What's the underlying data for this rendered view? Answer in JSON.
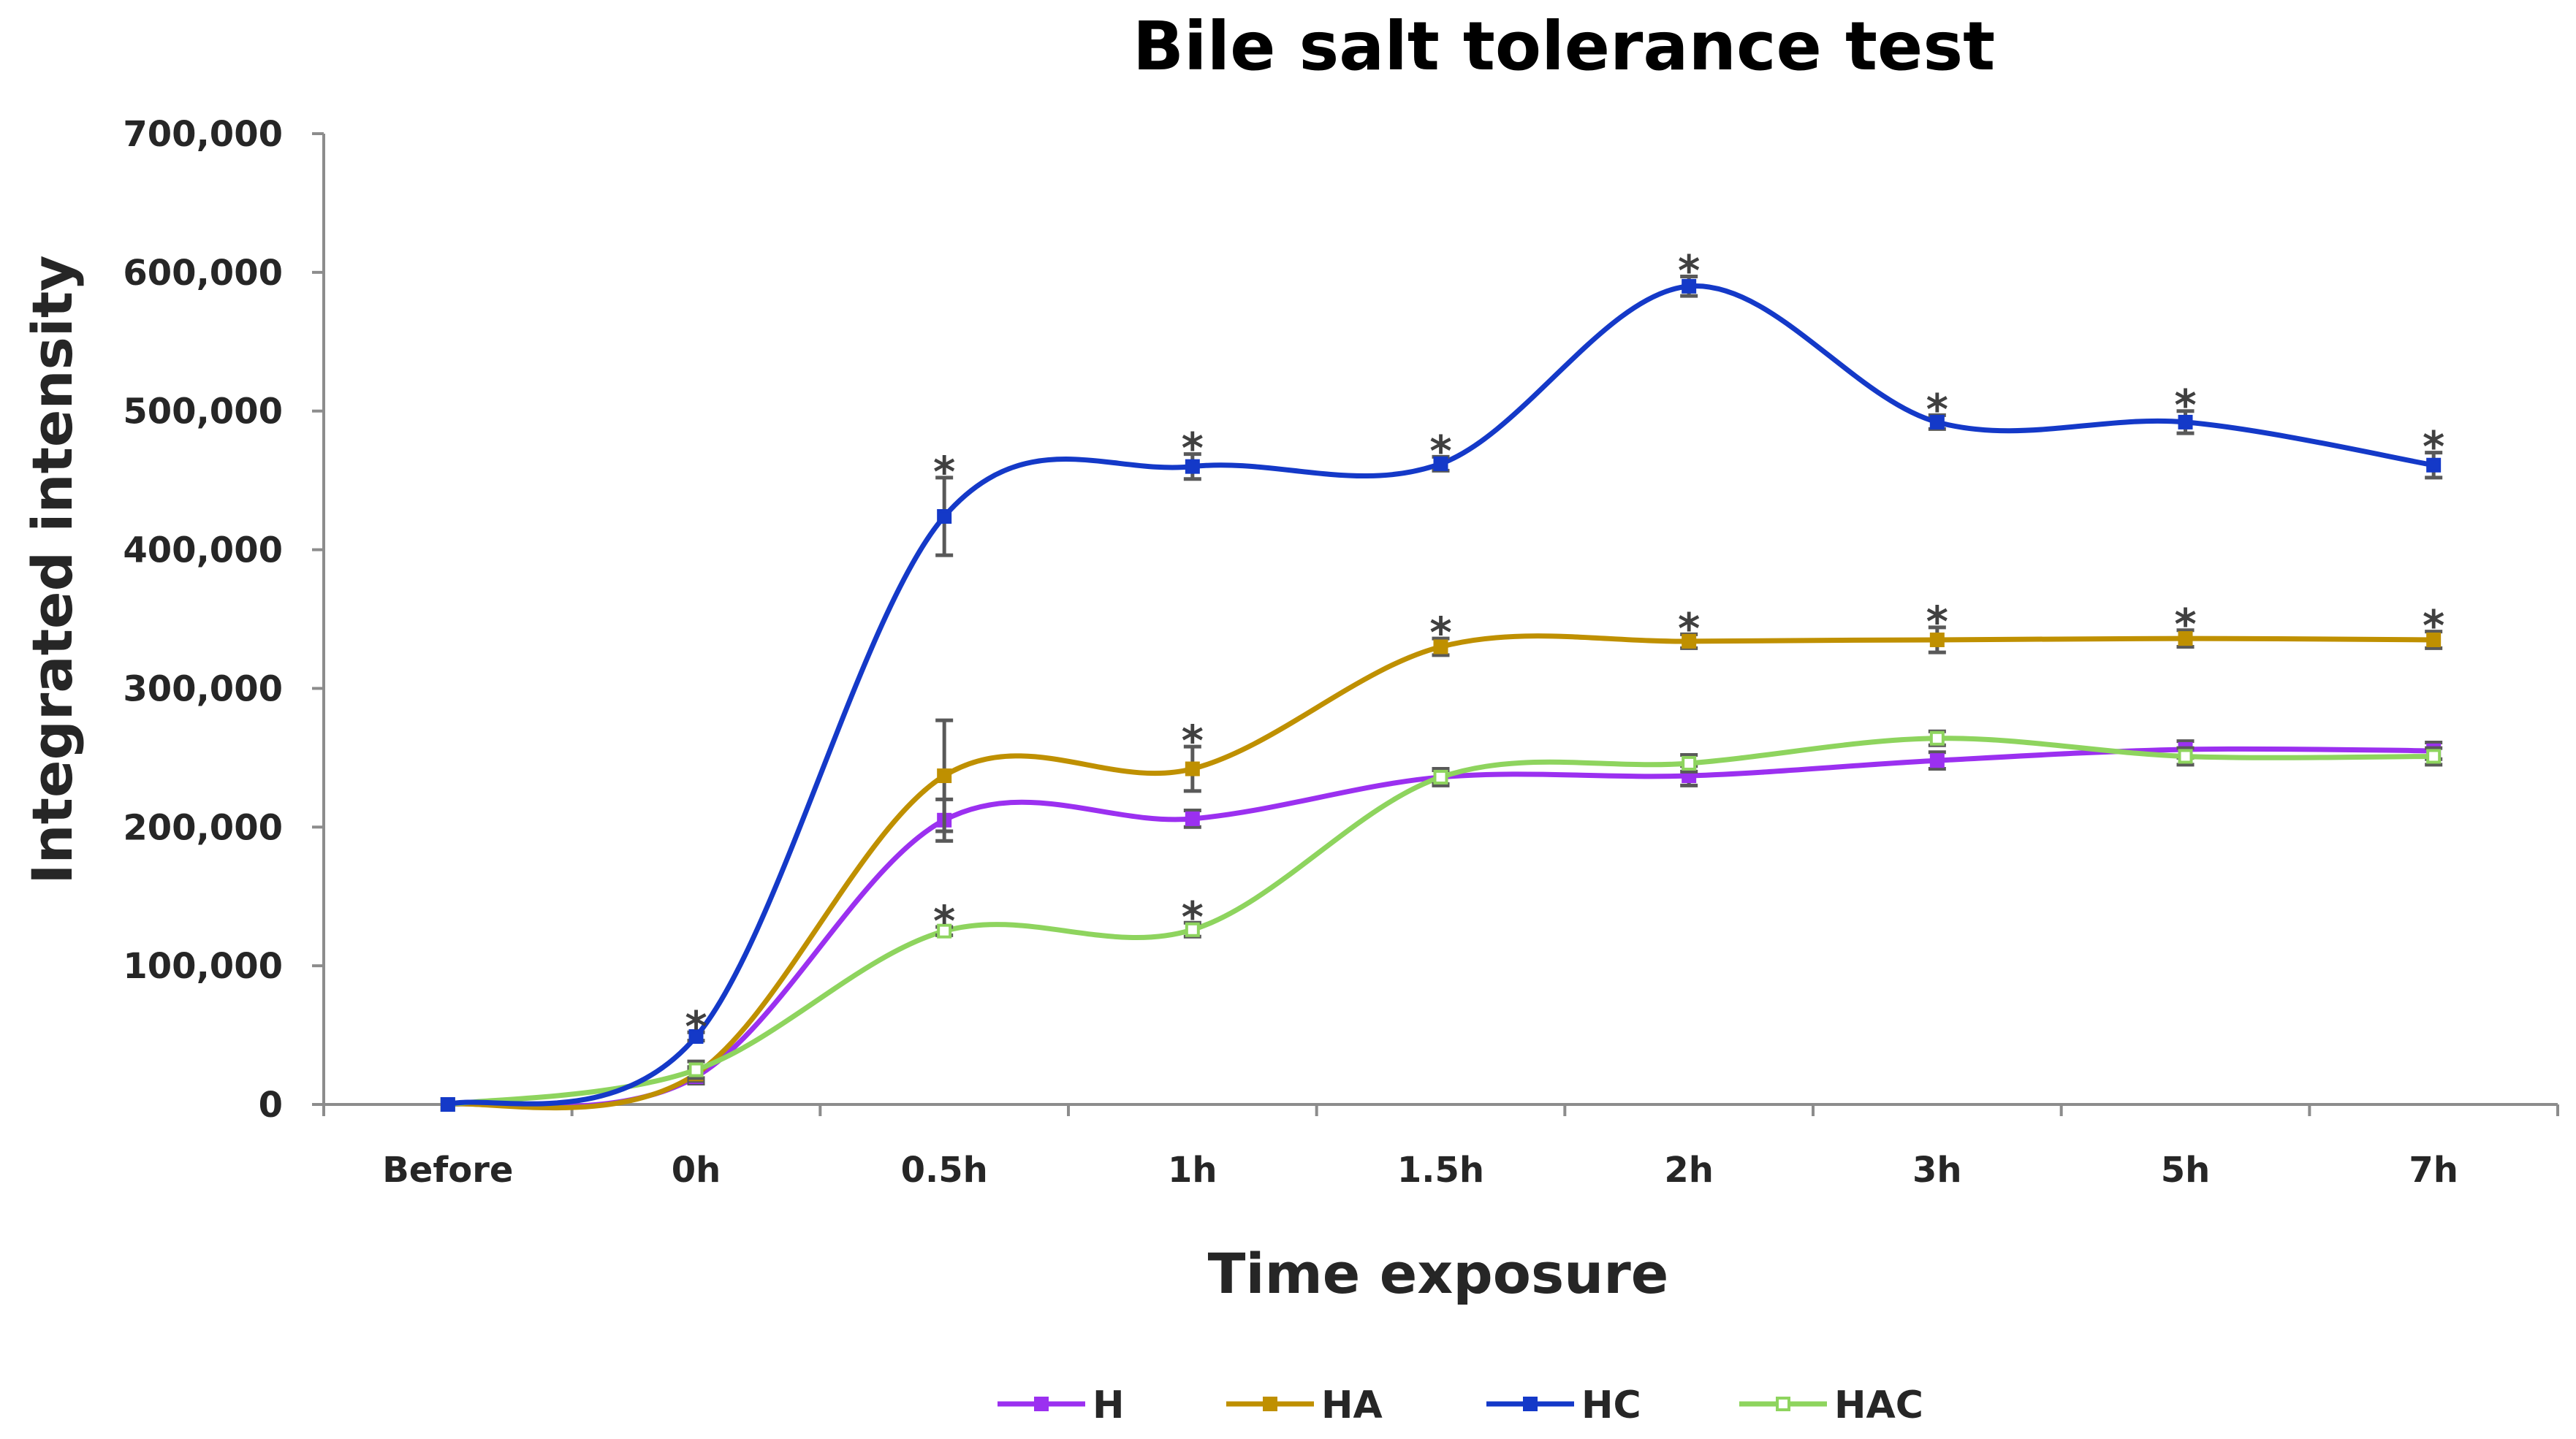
{
  "chart_data": {
    "type": "line",
    "title": "Bile salt tolerance test",
    "xlabel": "Time exposure",
    "ylabel": "Integrated intensity",
    "ylim": [
      0,
      700000
    ],
    "y_ticks": [
      0,
      100000,
      200000,
      300000,
      400000,
      500000,
      600000,
      700000
    ],
    "y_tick_labels": [
      "0",
      "100,000",
      "200,000",
      "300,000",
      "400,000",
      "500,000",
      "600,000",
      "700,000"
    ],
    "categories": [
      "Before",
      "0h",
      "0.5h",
      "1h",
      "1.5h",
      "2h",
      "3h",
      "5h",
      "7h"
    ],
    "legend_position": "bottom",
    "significance_marker": "*",
    "series": [
      {
        "name": "H",
        "color": "#9b30f0",
        "values": [
          0,
          20000,
          205000,
          206000,
          236000,
          237000,
          248000,
          256000,
          255000
        ],
        "errors": [
          0,
          5000,
          15000,
          6000,
          6000,
          7000,
          6000,
          6000,
          6000
        ],
        "significant": [
          false,
          false,
          false,
          false,
          false,
          false,
          false,
          false,
          false
        ]
      },
      {
        "name": "HA",
        "color": "#bf9000",
        "values": [
          0,
          22000,
          237000,
          242000,
          330000,
          334000,
          335000,
          336000,
          335000
        ],
        "errors": [
          0,
          5000,
          40000,
          16000,
          6000,
          5000,
          9000,
          6000,
          6000
        ],
        "significant": [
          false,
          false,
          false,
          true,
          true,
          true,
          true,
          true,
          true
        ]
      },
      {
        "name": "HC",
        "color": "#1439c8",
        "values": [
          0,
          49000,
          424000,
          460000,
          462000,
          590000,
          492000,
          492000,
          461000
        ],
        "errors": [
          0,
          3000,
          28000,
          9000,
          5000,
          7000,
          5000,
          8000,
          9000
        ],
        "significant": [
          false,
          true,
          true,
          true,
          true,
          true,
          true,
          true,
          true
        ]
      },
      {
        "name": "HAC",
        "color": "#8ed45e",
        "values": [
          0,
          25000,
          125000,
          126000,
          236000,
          246000,
          264000,
          251000,
          251000
        ],
        "errors": [
          0,
          6000,
          3000,
          5000,
          5000,
          6000,
          5000,
          6000,
          6000
        ],
        "significant": [
          false,
          false,
          true,
          true,
          false,
          false,
          false,
          false,
          false
        ]
      }
    ]
  }
}
